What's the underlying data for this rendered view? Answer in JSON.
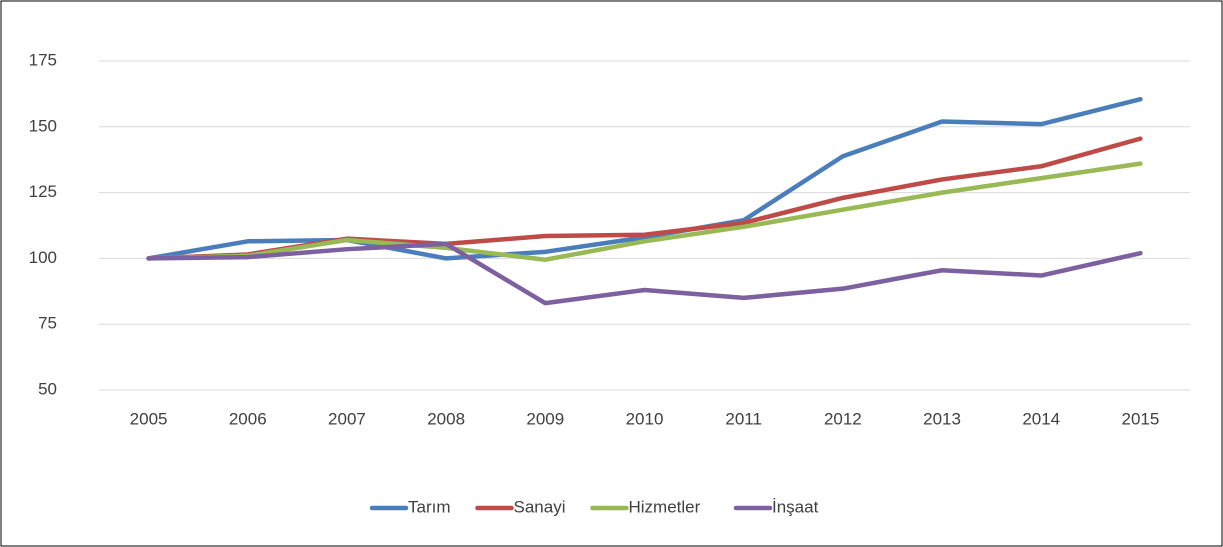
{
  "chart_data": {
    "type": "line",
    "categories": [
      "2005",
      "2006",
      "2007",
      "2008",
      "2009",
      "2010",
      "2011",
      "2012",
      "2013",
      "2014",
      "2015"
    ],
    "series": [
      {
        "name": "Tarım",
        "color": "#4a7ebb",
        "values": [
          100,
          106.5,
          107,
          100,
          102.5,
          108,
          114.5,
          138.8,
          152,
          151,
          160.5
        ]
      },
      {
        "name": "Sanayi",
        "color": "#be4b48",
        "values": [
          100,
          101.5,
          107.5,
          105.5,
          108.5,
          109,
          113.5,
          123,
          130,
          135,
          145.5
        ]
      },
      {
        "name": "Hizmetler",
        "color": "#98b954",
        "values": [
          100,
          101,
          107,
          104,
          99.5,
          106.5,
          112,
          118.5,
          125,
          130.5,
          136
        ]
      },
      {
        "name": "İnşaat",
        "color": "#7d60a0",
        "values": [
          100,
          100.5,
          103.5,
          105.5,
          83,
          88,
          85,
          88.5,
          95.5,
          93.5,
          102
        ]
      }
    ],
    "ylim": [
      50,
      175
    ],
    "yticks": [
      50,
      75,
      100,
      125,
      150,
      175
    ],
    "grid": true,
    "legend": "bottom"
  }
}
